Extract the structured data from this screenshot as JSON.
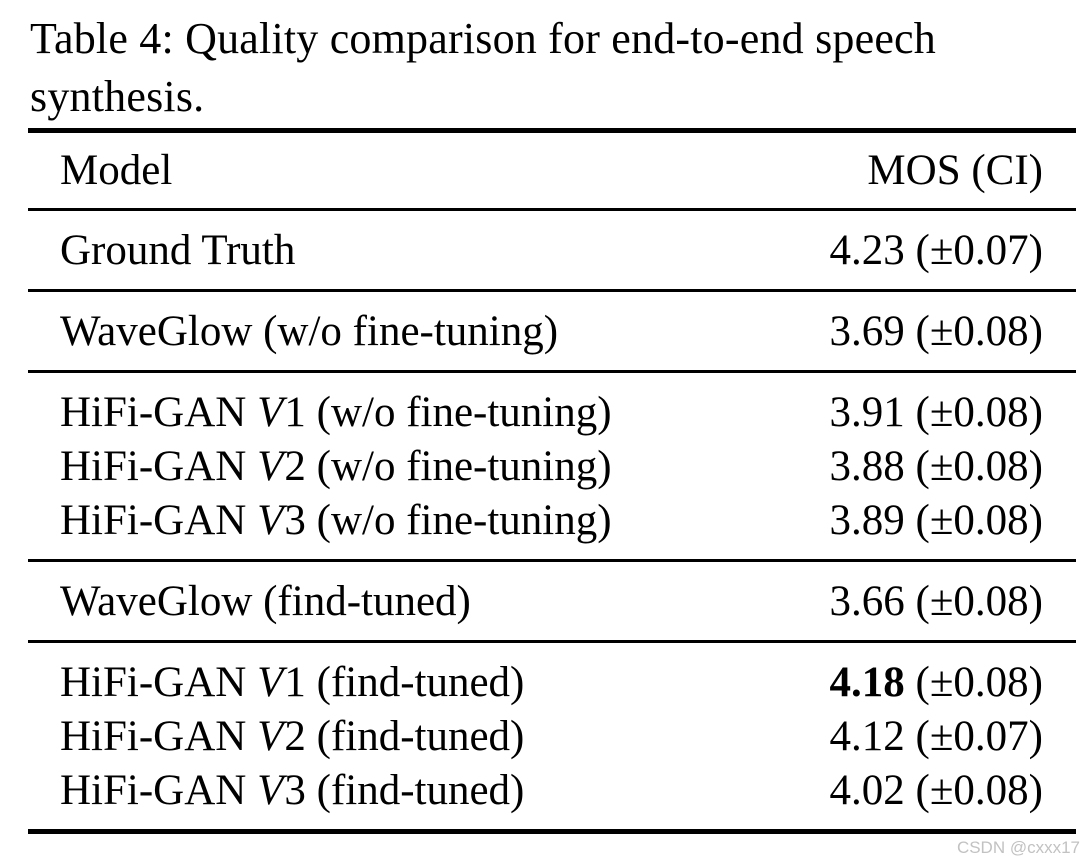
{
  "caption": "Table 4: Quality comparison for end-to-end speech synthesis.",
  "watermark": {
    "text": "CSDN @cxxx17",
    "color": "#c2c2c2"
  },
  "colors": {
    "text": "#000000",
    "background": "#ffffff",
    "rule": "#000000"
  },
  "table": {
    "header": {
      "model": "Model",
      "mos": "MOS (CI)"
    },
    "groups": [
      {
        "rows": [
          {
            "model_pre": "Ground Truth",
            "model_var": "",
            "model_post": "",
            "mos_value": "4.23",
            "mos_ci": "(±0.07)",
            "mos_bold": false
          }
        ]
      },
      {
        "rows": [
          {
            "model_pre": "WaveGlow (w/o fine-tuning)",
            "model_var": "",
            "model_post": "",
            "mos_value": "3.69",
            "mos_ci": "(±0.08)",
            "mos_bold": false
          }
        ]
      },
      {
        "rows": [
          {
            "model_pre": "HiFi-GAN ",
            "model_var": "V",
            "model_post": "1 (w/o fine-tuning)",
            "mos_value": "3.91",
            "mos_ci": "(±0.08)",
            "mos_bold": false
          },
          {
            "model_pre": "HiFi-GAN ",
            "model_var": "V",
            "model_post": "2 (w/o fine-tuning)",
            "mos_value": "3.88",
            "mos_ci": "(±0.08)",
            "mos_bold": false
          },
          {
            "model_pre": "HiFi-GAN ",
            "model_var": "V",
            "model_post": "3 (w/o fine-tuning)",
            "mos_value": "3.89",
            "mos_ci": "(±0.08)",
            "mos_bold": false
          }
        ]
      },
      {
        "rows": [
          {
            "model_pre": "WaveGlow (find-tuned)",
            "model_var": "",
            "model_post": "",
            "mos_value": "3.66",
            "mos_ci": "(±0.08)",
            "mos_bold": false
          }
        ]
      },
      {
        "rows": [
          {
            "model_pre": "HiFi-GAN ",
            "model_var": "V",
            "model_post": "1 (find-tuned)",
            "mos_value": "4.18",
            "mos_ci": "(±0.08)",
            "mos_bold": true
          },
          {
            "model_pre": "HiFi-GAN ",
            "model_var": "V",
            "model_post": "2 (find-tuned)",
            "mos_value": "4.12",
            "mos_ci": "(±0.07)",
            "mos_bold": false
          },
          {
            "model_pre": "HiFi-GAN ",
            "model_var": "V",
            "model_post": "3 (find-tuned)",
            "mos_value": "4.02",
            "mos_ci": "(±0.08)",
            "mos_bold": false
          }
        ]
      }
    ]
  }
}
